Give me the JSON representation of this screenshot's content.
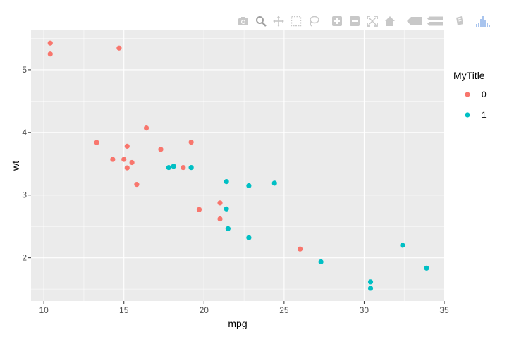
{
  "chart_data": {
    "type": "scatter",
    "xlabel": "mpg",
    "ylabel": "wt",
    "xlim": [
      9.2,
      35.0
    ],
    "ylim": [
      1.31,
      5.64
    ],
    "xticks": [
      10,
      15,
      20,
      25,
      30,
      35
    ],
    "yticks": [
      2,
      3,
      4,
      5
    ],
    "legend_title": "MyTitle",
    "legend_position": "right",
    "grid": true,
    "series": [
      {
        "name": "0",
        "color": "#F8766D",
        "points": [
          [
            10.4,
            5.424
          ],
          [
            10.4,
            5.25
          ],
          [
            14.7,
            5.345
          ],
          [
            16.4,
            4.07
          ],
          [
            13.3,
            3.84
          ],
          [
            19.2,
            3.845
          ],
          [
            15.2,
            3.78
          ],
          [
            17.3,
            3.73
          ],
          [
            14.3,
            3.57
          ],
          [
            15.0,
            3.57
          ],
          [
            15.5,
            3.52
          ],
          [
            15.2,
            3.435
          ],
          [
            18.7,
            3.44
          ],
          [
            15.8,
            3.17
          ],
          [
            19.7,
            2.77
          ],
          [
            21.0,
            2.875
          ],
          [
            21.0,
            2.62
          ],
          [
            26.0,
            2.14
          ]
        ]
      },
      {
        "name": "1",
        "color": "#00BFC4",
        "points": [
          [
            17.8,
            3.44
          ],
          [
            18.1,
            3.46
          ],
          [
            19.2,
            3.44
          ],
          [
            21.4,
            3.215
          ],
          [
            22.8,
            3.15
          ],
          [
            24.4,
            3.19
          ],
          [
            21.4,
            2.78
          ],
          [
            21.5,
            2.465
          ],
          [
            22.8,
            2.32
          ],
          [
            27.3,
            1.935
          ],
          [
            30.4,
            1.615
          ],
          [
            30.4,
            1.513
          ],
          [
            32.4,
            2.2
          ],
          [
            33.9,
            1.835
          ]
        ]
      }
    ]
  },
  "modebar": {
    "icons": [
      "camera-icon",
      "zoom-icon",
      "pan-icon",
      "box-select-icon",
      "lasso-select-icon",
      "zoom-in-icon",
      "zoom-out-icon",
      "autoscale-icon",
      "reset-axes-icon",
      "hover-closest-icon",
      "hover-compare-icon",
      "toggle-spikelines-icon",
      "plotly-logo-icon"
    ],
    "icon_color": "#c8c8c8",
    "logo_color": "#a8c4ee"
  },
  "colors": {
    "panel_background": "#EBEBEB",
    "grid_major": "#FFFFFF",
    "axis_text": "#4D4D4D"
  }
}
